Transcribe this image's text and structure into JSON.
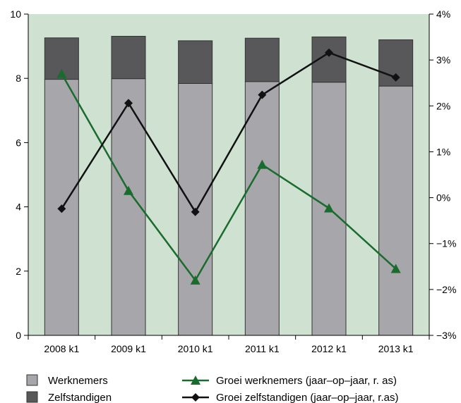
{
  "chart_data": {
    "type": "bar",
    "categories": [
      "2008 k1",
      "2009 k1",
      "2010 k1",
      "2011 k1",
      "2012 k1",
      "2013 k1"
    ],
    "stacked": true,
    "series": [
      {
        "name": "Werknemers",
        "kind": "bar",
        "axis": "left",
        "color": "#a7a6aa",
        "values": [
          7.97,
          7.99,
          7.84,
          7.9,
          7.88,
          7.76
        ]
      },
      {
        "name": "Zelfstandigen",
        "kind": "bar",
        "axis": "left",
        "color": "#58585a",
        "values": [
          1.29,
          1.32,
          1.33,
          1.35,
          1.41,
          1.44
        ]
      },
      {
        "name": "Groei werknemers (jaar–op–jaar, r. as)",
        "kind": "line",
        "axis": "right",
        "marker": "triangle",
        "color": "#1a6b2e",
        "values": [
          2.7,
          0.15,
          -1.8,
          0.72,
          -0.23,
          -1.55
        ]
      },
      {
        "name": "Groei zelfstandigen (jaar–op–jaar, r.as)",
        "kind": "line",
        "axis": "right",
        "marker": "diamond",
        "color": "#111111",
        "values": [
          -0.24,
          2.06,
          -0.31,
          2.24,
          3.16,
          2.62
        ]
      }
    ],
    "left_axis": {
      "min": 0,
      "max": 10,
      "ticks": [
        0,
        2,
        4,
        6,
        8,
        10
      ],
      "tick_labels": [
        "0",
        "2",
        "4",
        "6",
        "8",
        "10"
      ]
    },
    "right_axis": {
      "min": -3,
      "max": 4,
      "ticks": [
        -3,
        -2,
        -1,
        0,
        1,
        2,
        3,
        4
      ],
      "tick_labels": [
        "−3%",
        "−2%",
        "−1%",
        "0%",
        "1%",
        "2%",
        "3%",
        "4%"
      ]
    },
    "plot_background": "#cfe2d1",
    "grid": false,
    "legend_position": "bottom",
    "title": "",
    "xlabel": "",
    "ylabel": ""
  }
}
